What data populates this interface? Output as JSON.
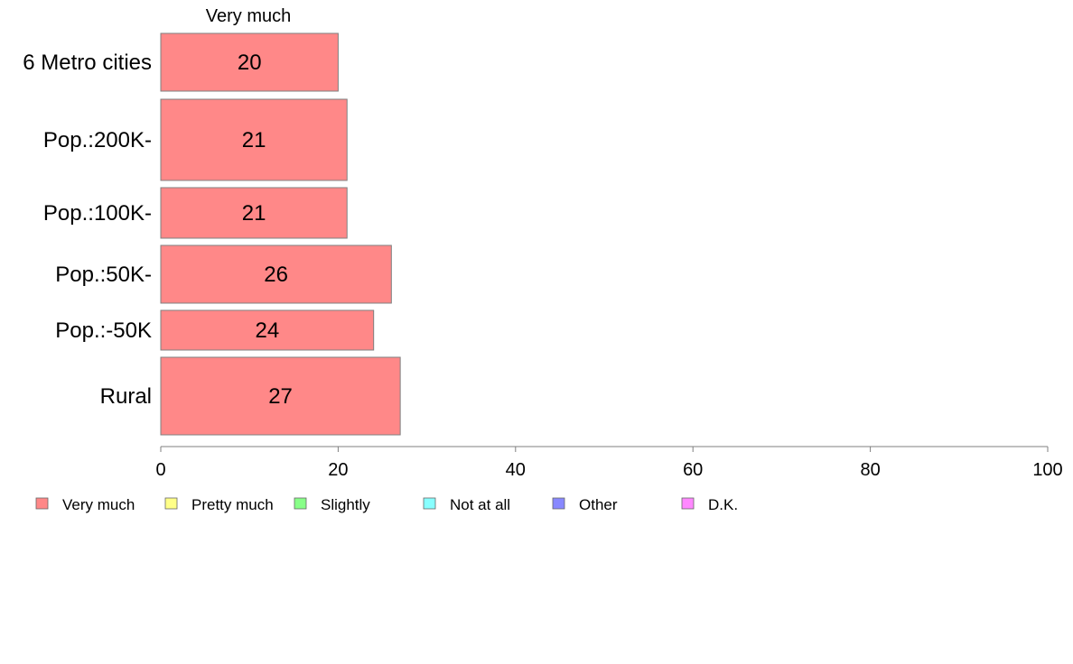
{
  "chart_data": {
    "type": "bar",
    "orientation": "horizontal",
    "column_header": "Very much",
    "categories": [
      "6 Metro cities",
      "Pop.:200K-",
      "Pop.:100K-",
      "Pop.:50K-",
      "Pop.:-50K",
      "Rural"
    ],
    "series": [
      {
        "name": "Very much",
        "color": "#ff8888",
        "values": [
          20,
          21,
          21,
          26,
          24,
          27
        ],
        "labels": [
          "20",
          "21",
          "21",
          "26",
          "24",
          "27"
        ]
      }
    ],
    "xlim": [
      0,
      100
    ],
    "xticks": [
      0,
      20,
      40,
      60,
      80,
      100
    ],
    "xtick_labels": [
      "0",
      "20",
      "40",
      "60",
      "80",
      "100"
    ],
    "grid": false,
    "legend_position": "bottom-left",
    "legend": [
      {
        "label": "Very much",
        "color": "#ff8888"
      },
      {
        "label": "Pretty much",
        "color": "#ffff88"
      },
      {
        "label": "Slightly",
        "color": "#88ff88"
      },
      {
        "label": "Not at all",
        "color": "#88ffff"
      },
      {
        "label": "Other",
        "color": "#8888ff"
      },
      {
        "label": "D.K.",
        "color": "#ff88ff"
      }
    ]
  }
}
